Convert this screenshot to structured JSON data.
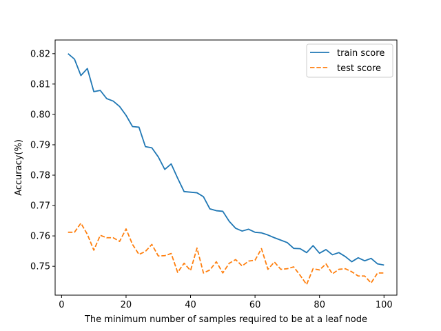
{
  "chart_data": {
    "type": "line",
    "title": "",
    "xlabel": "The minimum number of samples required to be at a leaf node",
    "ylabel": "Accuracy(%)",
    "xlim": [
      -2,
      104
    ],
    "ylim": [
      0.7405,
      0.8245
    ],
    "xticks": [
      0,
      20,
      40,
      60,
      80,
      100
    ],
    "yticks": [
      0.75,
      0.76,
      0.77,
      0.78,
      0.79,
      0.8,
      0.81,
      0.82
    ],
    "ytick_labels": [
      "0.75",
      "0.76",
      "0.77",
      "0.78",
      "0.79",
      "0.80",
      "0.81",
      "0.82"
    ],
    "grid": false,
    "legend_position": "top-right",
    "x": [
      2,
      4,
      6,
      8,
      10,
      12,
      14,
      16,
      18,
      20,
      22,
      24,
      26,
      28,
      30,
      32,
      34,
      36,
      38,
      40,
      42,
      44,
      46,
      48,
      50,
      52,
      54,
      56,
      58,
      60,
      62,
      64,
      66,
      68,
      70,
      72,
      74,
      76,
      78,
      80,
      82,
      84,
      86,
      88,
      90,
      92,
      94,
      96,
      98,
      100
    ],
    "series": [
      {
        "name": "train score",
        "color": "#1f77b4",
        "dash": "solid",
        "values": [
          0.82,
          0.8182,
          0.8128,
          0.8151,
          0.8075,
          0.8079,
          0.8052,
          0.8044,
          0.8026,
          0.7997,
          0.796,
          0.7958,
          0.7894,
          0.789,
          0.786,
          0.7819,
          0.7837,
          0.779,
          0.7746,
          0.7744,
          0.7742,
          0.7729,
          0.7689,
          0.7683,
          0.7681,
          0.7648,
          0.7625,
          0.7616,
          0.7622,
          0.7612,
          0.761,
          0.7603,
          0.7594,
          0.7586,
          0.7578,
          0.7559,
          0.7558,
          0.7545,
          0.7568,
          0.7543,
          0.7555,
          0.7538,
          0.7545,
          0.7532,
          0.7515,
          0.7528,
          0.7518,
          0.7526,
          0.7508,
          0.7504
        ]
      },
      {
        "name": "test score",
        "color": "#ff7f0e",
        "dash": "dashed",
        "values": [
          0.7612,
          0.7612,
          0.7642,
          0.7605,
          0.7553,
          0.7602,
          0.7594,
          0.7594,
          0.7582,
          0.7623,
          0.7572,
          0.7539,
          0.7549,
          0.7572,
          0.7534,
          0.7535,
          0.7542,
          0.748,
          0.751,
          0.7486,
          0.756,
          0.7478,
          0.7488,
          0.7515,
          0.7478,
          0.751,
          0.7522,
          0.7501,
          0.7517,
          0.752,
          0.7558,
          0.749,
          0.7514,
          0.749,
          0.7492,
          0.7498,
          0.747,
          0.744,
          0.7492,
          0.7488,
          0.7508,
          0.7475,
          0.749,
          0.7492,
          0.7482,
          0.7468,
          0.7468,
          0.7445,
          0.7478,
          0.7478
        ]
      }
    ]
  }
}
